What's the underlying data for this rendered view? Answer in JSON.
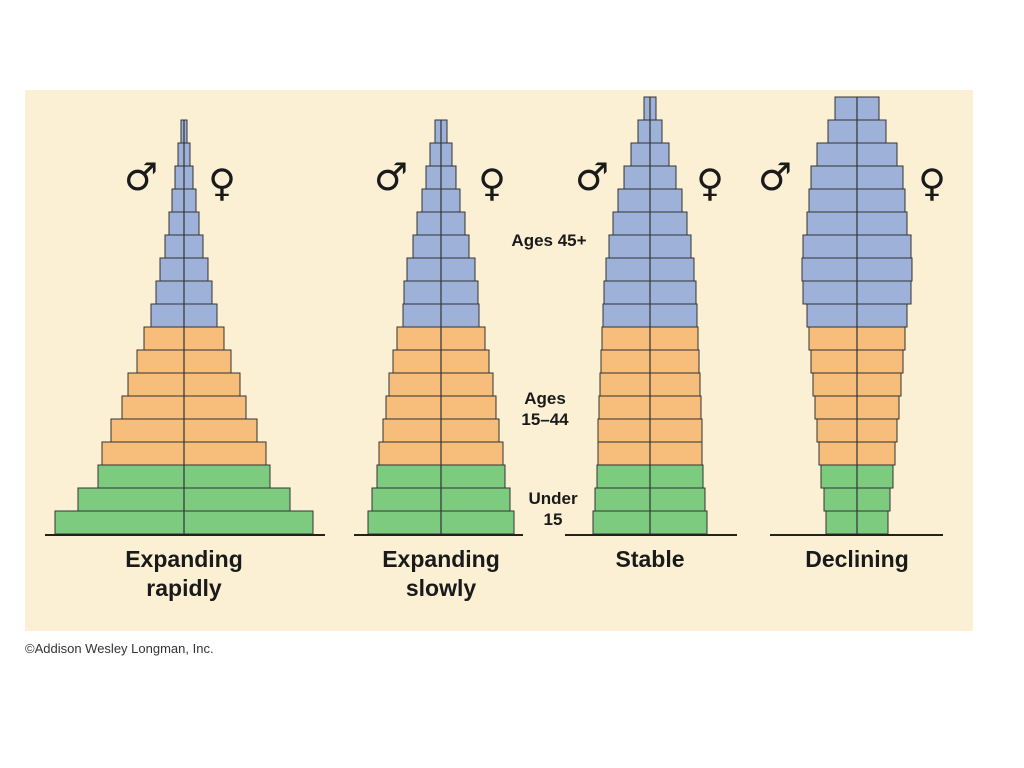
{
  "figure": {
    "pyramids": [
      {
        "title": "Expanding\nrapidly",
        "male_symbol": "♂",
        "female_symbol": "♀"
      },
      {
        "title": "Expanding\nslowly",
        "male_symbol": "♂",
        "female_symbol": "♀"
      },
      {
        "title": "Stable",
        "male_symbol": "♂",
        "female_symbol": "♀"
      },
      {
        "title": "Declining",
        "male_symbol": "♂",
        "female_symbol": "♀"
      }
    ],
    "band_labels": {
      "old": "Ages 45+",
      "middle": "Ages\n15–44",
      "young": "Under\n15"
    },
    "colors": {
      "panel_background": "#fbf0d3",
      "ages_45_plus": "#9eb1d9",
      "ages_15_44": "#f6be7a",
      "under_15": "#7ccb7f",
      "outline": "#333333"
    }
  },
  "copyright": "©Addison Wesley Longman, Inc."
}
